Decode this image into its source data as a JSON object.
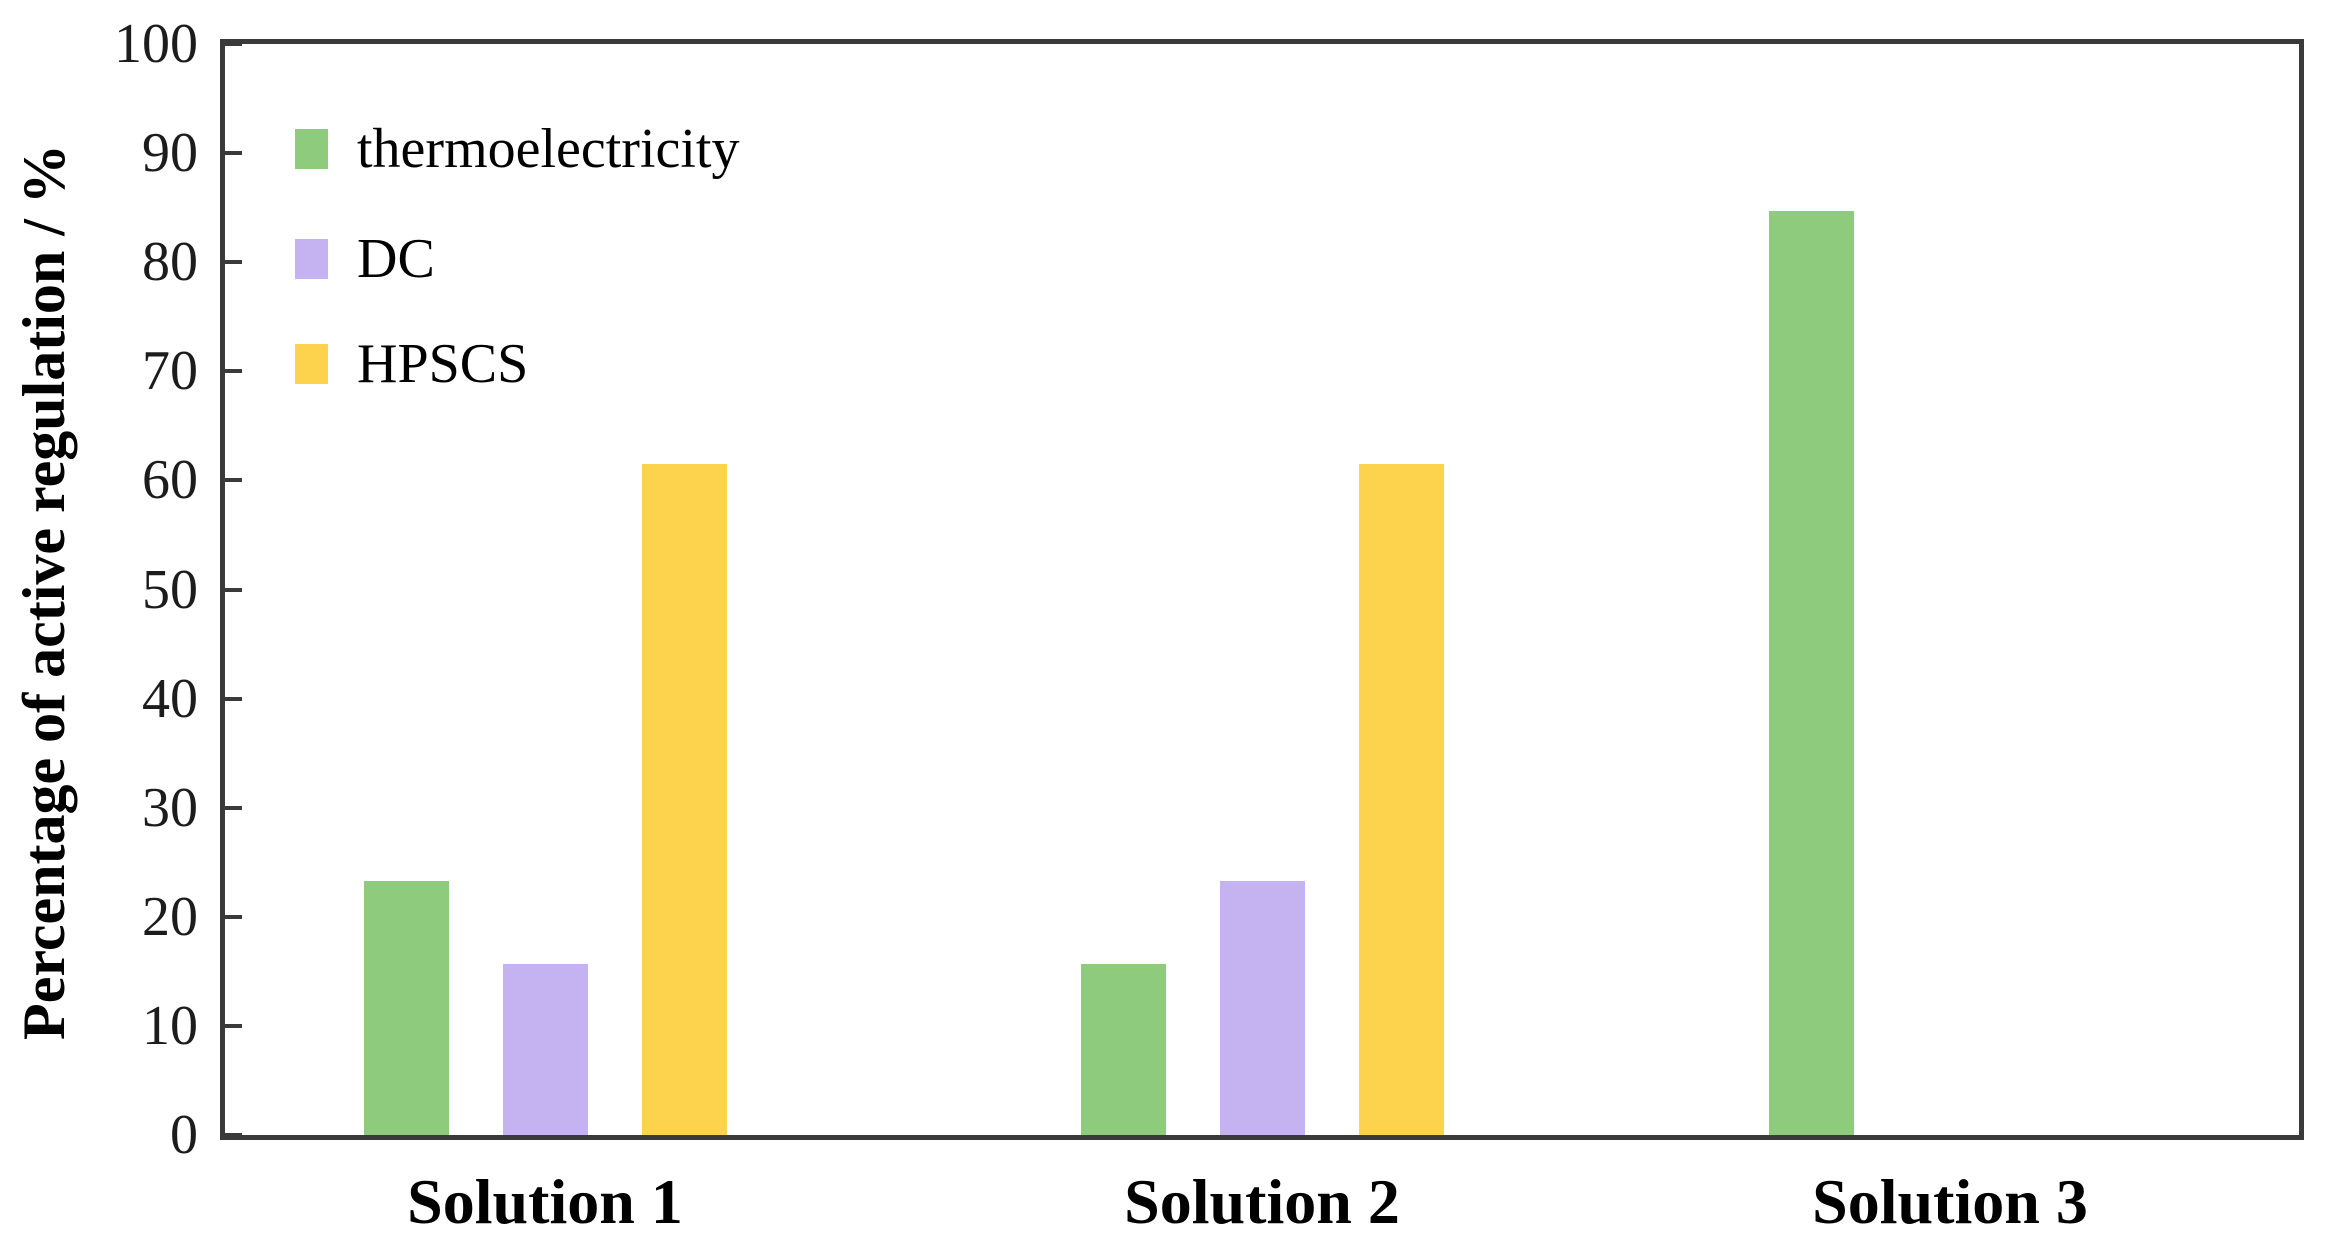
{
  "chart_data": {
    "type": "bar",
    "title": "",
    "categories": [
      "Solution 1",
      "Solution 2",
      "Solution 3"
    ],
    "series": [
      {
        "name": "thermoelectricity",
        "color": "#8ecb7d",
        "values": [
          23.3,
          15.7,
          84.7
        ]
      },
      {
        "name": "DC",
        "color": "#c5b3f1",
        "values": [
          15.7,
          23.3,
          0
        ]
      },
      {
        "name": "HPSCS",
        "color": "#fdd34e",
        "values": [
          61.5,
          61.5,
          0
        ]
      }
    ],
    "xlabel": "",
    "ylabel": "Percentage of active regulation / %",
    "ylim": [
      0,
      100
    ],
    "ytick_step": 10,
    "yticks": [
      "0",
      "10",
      "20",
      "30",
      "40",
      "50",
      "60",
      "70",
      "80",
      "90",
      "100"
    ],
    "grid": false,
    "legend_position": "upper-left-inside",
    "colors": {
      "axis": "#3a3a3a",
      "text": "#000000",
      "background": "#ffffff"
    }
  }
}
